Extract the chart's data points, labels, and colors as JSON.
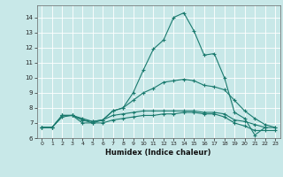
{
  "xlabel": "Humidex (Indice chaleur)",
  "background_color": "#c8e8e8",
  "grid_color": "#ffffff",
  "line_color": "#1a7a6e",
  "xlim": [
    -0.5,
    23.5
  ],
  "ylim": [
    6.0,
    14.8
  ],
  "yticks": [
    6,
    7,
    8,
    9,
    10,
    11,
    12,
    13,
    14
  ],
  "xticks": [
    0,
    1,
    2,
    3,
    4,
    5,
    6,
    7,
    8,
    9,
    10,
    11,
    12,
    13,
    14,
    15,
    16,
    17,
    18,
    19,
    20,
    21,
    22,
    23
  ],
  "line1_x": [
    0,
    1,
    2,
    3,
    4,
    5,
    6,
    7,
    8,
    9,
    10,
    11,
    12,
    13,
    14,
    15,
    16,
    17,
    18,
    19,
    20,
    21,
    22
  ],
  "line1_y": [
    6.7,
    6.7,
    7.5,
    7.5,
    7.2,
    7.0,
    7.2,
    7.8,
    8.0,
    9.0,
    10.5,
    11.9,
    12.5,
    14.0,
    14.3,
    13.1,
    11.5,
    11.6,
    10.0,
    7.7,
    7.3,
    6.2,
    6.7
  ],
  "line2_x": [
    0,
    1,
    2,
    3,
    4,
    5,
    6,
    7,
    8,
    9,
    10,
    11,
    12,
    13,
    14,
    15,
    16,
    17,
    18,
    19,
    20,
    21,
    22,
    23
  ],
  "line2_y": [
    6.7,
    6.7,
    7.5,
    7.5,
    7.3,
    7.1,
    7.2,
    7.8,
    8.0,
    8.5,
    9.0,
    9.3,
    9.7,
    9.8,
    9.9,
    9.8,
    9.5,
    9.4,
    9.2,
    8.5,
    7.8,
    7.3,
    6.9,
    6.7
  ],
  "line3_x": [
    0,
    1,
    2,
    3,
    4,
    5,
    6,
    7,
    8,
    9,
    10,
    11,
    12,
    13,
    14,
    15,
    16,
    17,
    18,
    19,
    20,
    21,
    22,
    23
  ],
  "line3_y": [
    6.7,
    6.7,
    7.5,
    7.5,
    7.2,
    7.1,
    7.2,
    7.5,
    7.6,
    7.7,
    7.8,
    7.8,
    7.8,
    7.8,
    7.8,
    7.8,
    7.7,
    7.7,
    7.6,
    7.2,
    7.1,
    6.9,
    6.7,
    6.7
  ],
  "line4_x": [
    0,
    1,
    2,
    3,
    4,
    5,
    6,
    7,
    8,
    9,
    10,
    11,
    12,
    13,
    14,
    15,
    16,
    17,
    18,
    19,
    20,
    21,
    22,
    23
  ],
  "line4_y": [
    6.7,
    6.7,
    7.4,
    7.5,
    7.0,
    7.0,
    7.0,
    7.2,
    7.3,
    7.4,
    7.5,
    7.5,
    7.6,
    7.6,
    7.7,
    7.7,
    7.6,
    7.6,
    7.4,
    7.0,
    6.8,
    6.5,
    6.5,
    6.5
  ]
}
